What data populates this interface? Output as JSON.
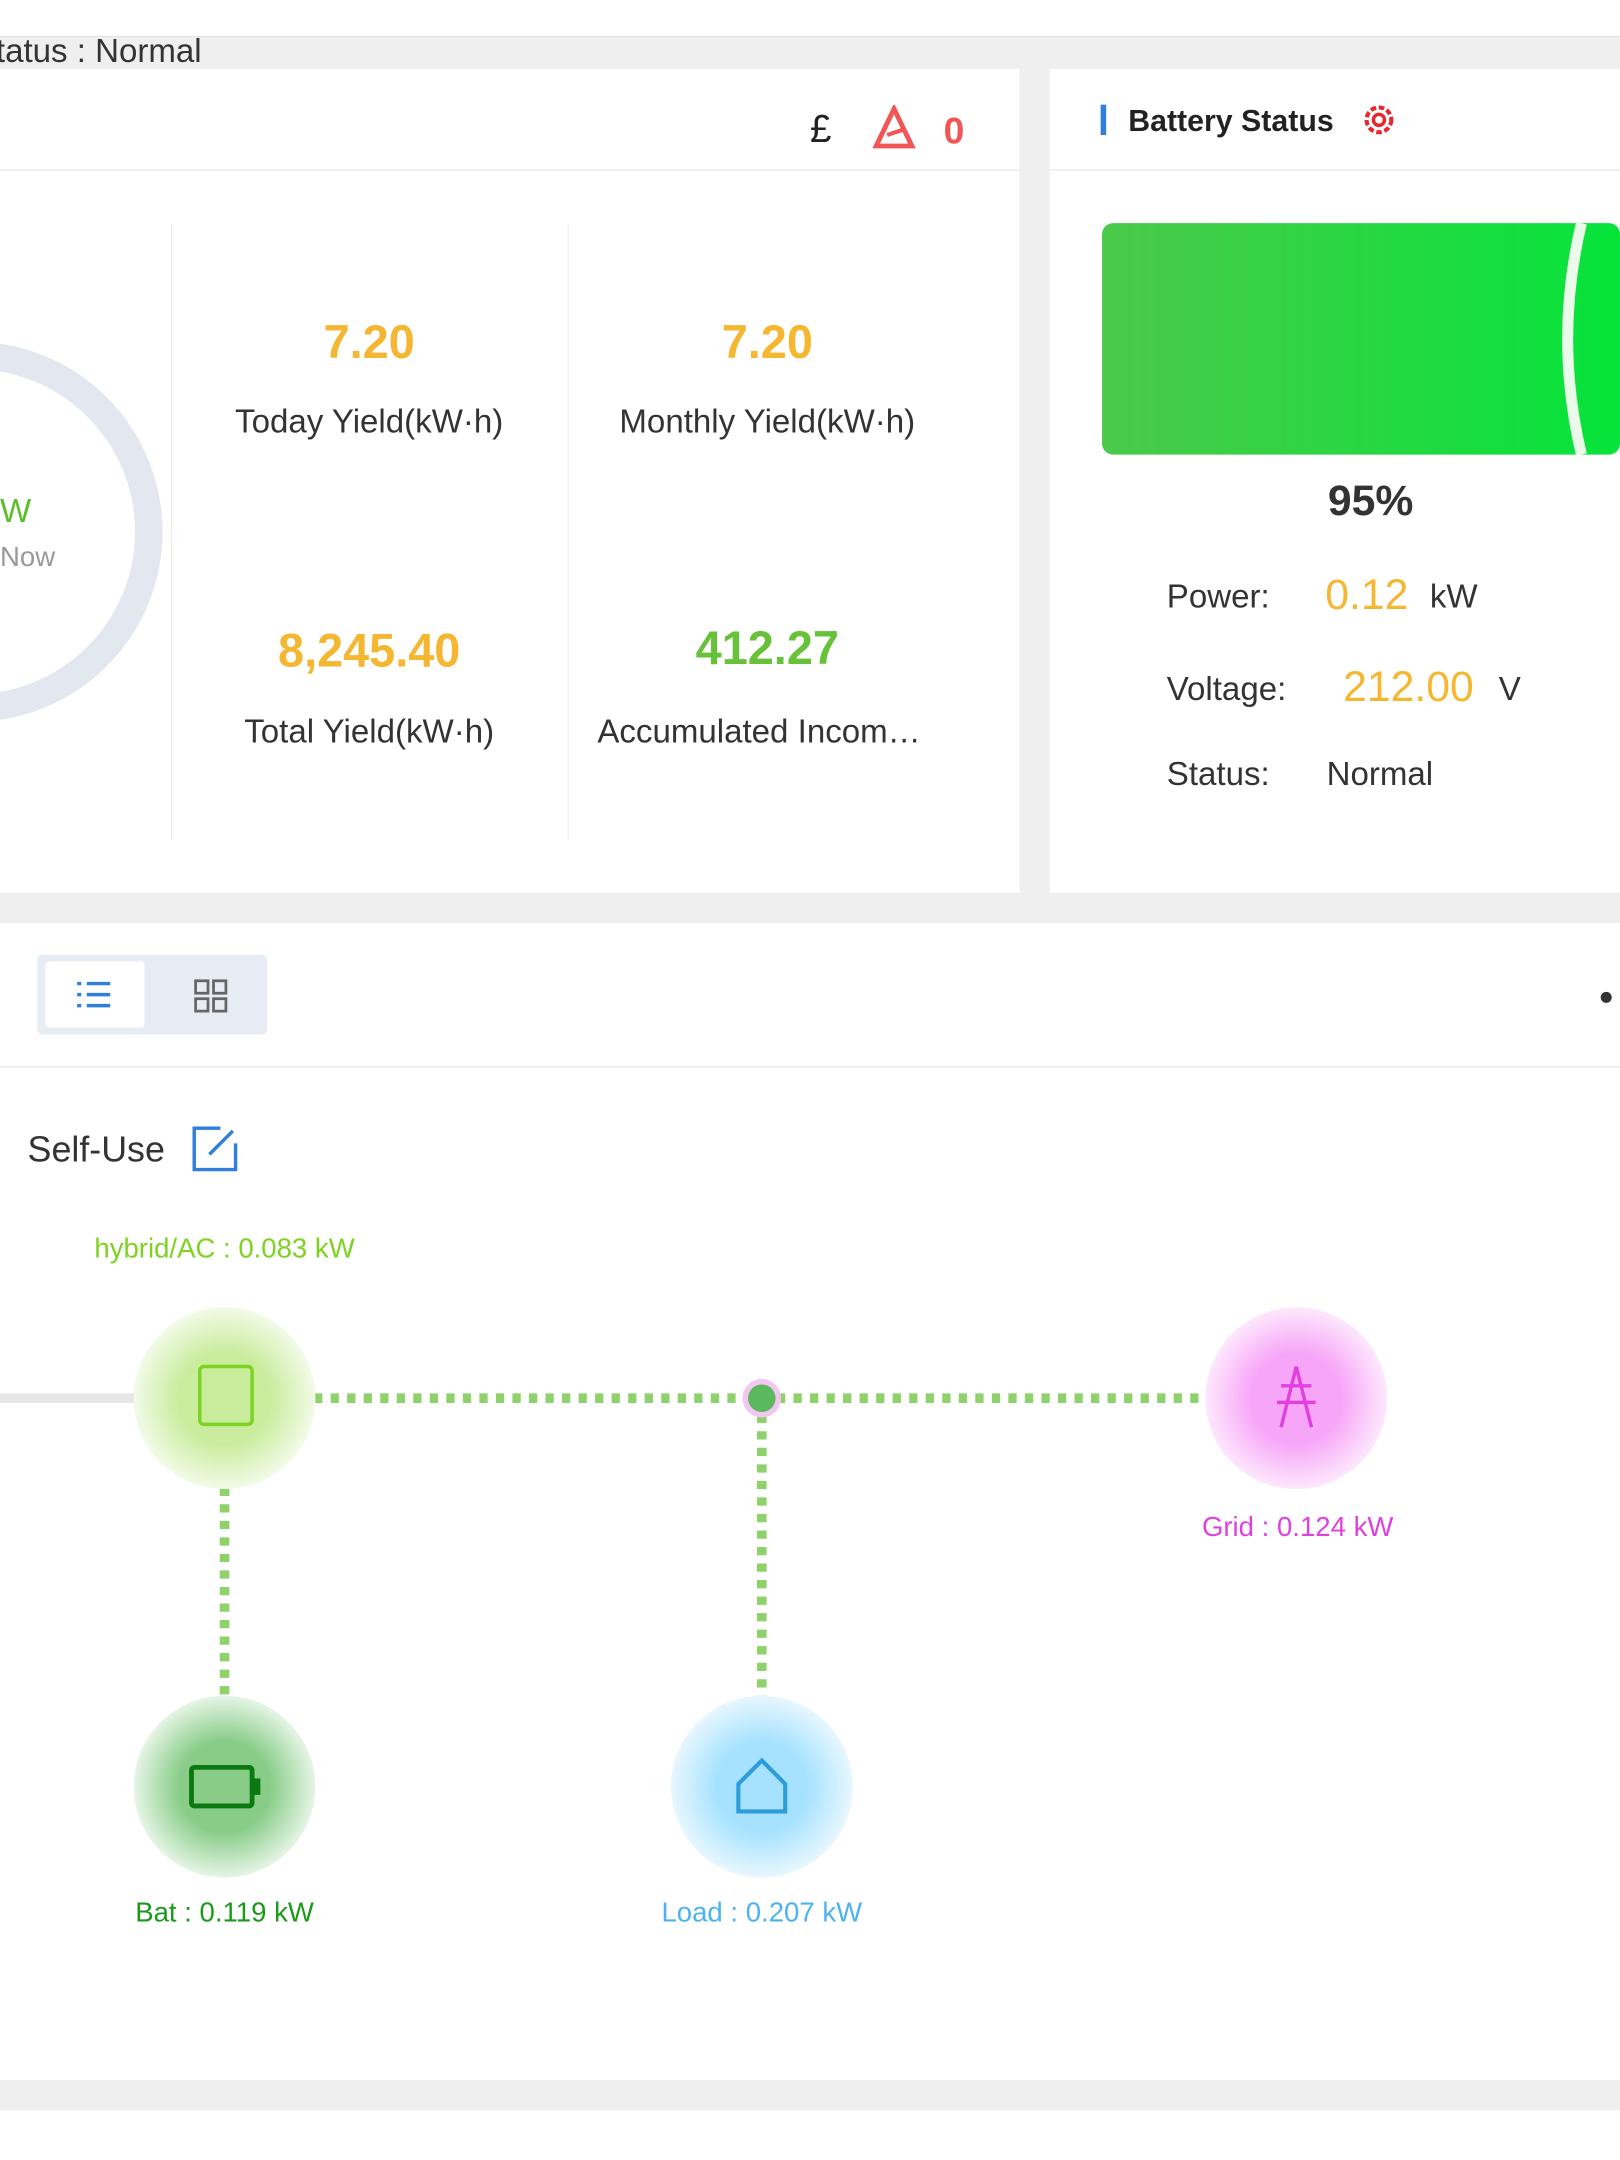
{
  "header": {
    "status": "Status : Normal",
    "currency": "£",
    "alarm_count": "0"
  },
  "overview": {
    "ring_value": "W",
    "ring_caption": "Now",
    "stats": [
      {
        "value": "7.20",
        "label": "Today Yield(kW·h)"
      },
      {
        "value": "7.20",
        "label": "Monthly Yield(kW·h)"
      },
      {
        "value": "8,245.40",
        "label": "Total Yield(kW·h)"
      },
      {
        "value": "412.27",
        "label": "Accumulated Incom…"
      }
    ]
  },
  "battery": {
    "title": "Battery Status",
    "percent": "95%",
    "rows": [
      {
        "label": "Power:",
        "value": "0.12",
        "unit": "kW"
      },
      {
        "label": "Voltage:",
        "value": "212.00",
        "unit": "V"
      },
      {
        "label": "Status:",
        "value": "Normal"
      }
    ]
  },
  "flow": {
    "mode": "Self-Use",
    "hybrid": "hybrid/AC : 0.083 kW",
    "grid": "Grid : 0.124 kW",
    "battery": "Bat : 0.119 kW",
    "load": "Load : 0.207 kW"
  }
}
